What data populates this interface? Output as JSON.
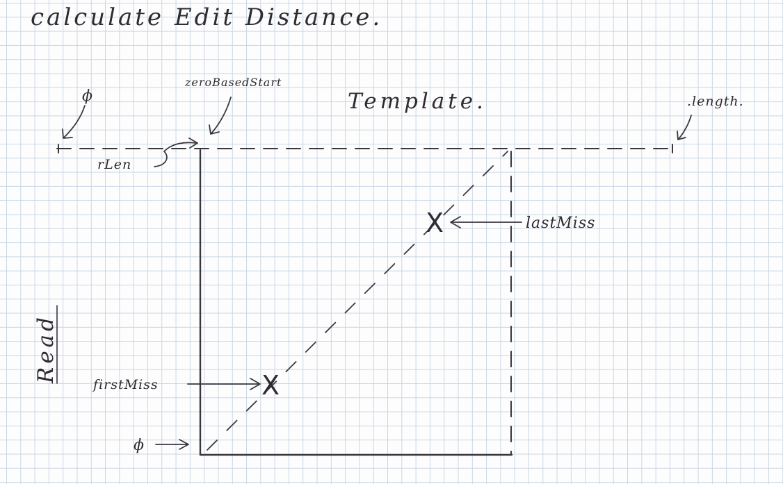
{
  "title": "calculate Edit Distance.",
  "labels": {
    "phi_top": "ϕ",
    "zero_based_start": "zeroBasedStart",
    "template": "Template.",
    "length": ".length.",
    "rlen": "rLen",
    "last_miss": "lastMiss",
    "read": "Read",
    "first_miss": "firstMiss",
    "phi_bottom": "ϕ"
  },
  "markers": {
    "first_miss_mark": "X",
    "last_miss_mark": "X"
  },
  "colors": {
    "ink": "#2f2b33",
    "grid": "#c9d6e4",
    "paper": "#fdfdfd"
  }
}
